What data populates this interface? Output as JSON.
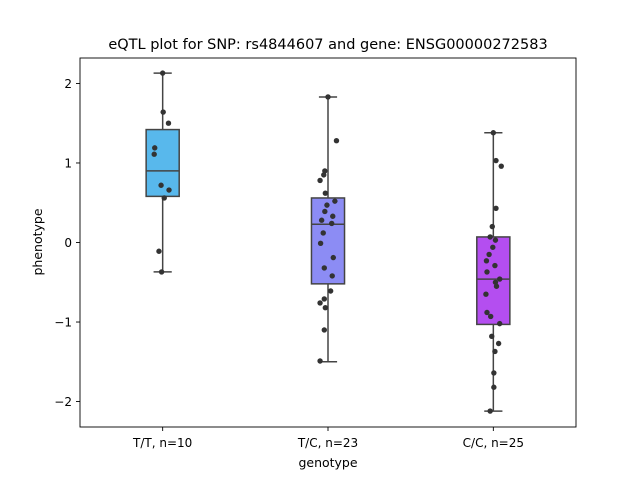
{
  "chart_data": {
    "type": "box",
    "title": "eQTL plot for SNP: rs4844607 and gene: ENSG00000272583",
    "xlabel": "genotype",
    "ylabel": "phenotype",
    "ylim": [
      -2.32,
      2.32
    ],
    "yticks": [
      -2,
      -1,
      0,
      1,
      2
    ],
    "ytick_labels": [
      "−2",
      "−1",
      "0",
      "1",
      "2"
    ],
    "grid": false,
    "categories": [
      "T/T, n=10",
      "T/C, n=23",
      "C/C, n=25"
    ],
    "colors": [
      "#58b8ec",
      "#8c8cf4",
      "#b44ef0"
    ],
    "boxes": [
      {
        "category": "T/T, n=10",
        "whisker_low": -0.37,
        "q1": 0.58,
        "median": 0.9,
        "q3": 1.42,
        "whisker_high": 2.13
      },
      {
        "category": "T/C, n=23",
        "whisker_low": -1.5,
        "q1": -0.52,
        "median": 0.23,
        "q3": 0.56,
        "whisker_high": 1.83
      },
      {
        "category": "C/C, n=25",
        "whisker_low": -2.12,
        "q1": -1.03,
        "median": -0.46,
        "q3": 0.07,
        "whisker_high": 1.38
      }
    ],
    "points": [
      [
        [
          0.0,
          2.13
        ],
        [
          0.01,
          1.64
        ],
        [
          0.11,
          1.5
        ],
        [
          -0.15,
          1.19
        ],
        [
          -0.16,
          1.11
        ],
        [
          -0.03,
          0.72
        ],
        [
          0.12,
          0.66
        ],
        [
          0.03,
          0.56
        ],
        [
          -0.07,
          -0.11
        ],
        [
          -0.02,
          -0.37
        ]
      ],
      [
        [
          0.0,
          1.83
        ],
        [
          0.16,
          1.28
        ],
        [
          -0.06,
          0.9
        ],
        [
          -0.08,
          0.85
        ],
        [
          -0.15,
          0.78
        ],
        [
          -0.05,
          0.62
        ],
        [
          0.13,
          0.52
        ],
        [
          -0.02,
          0.47
        ],
        [
          -0.06,
          0.39
        ],
        [
          0.09,
          0.33
        ],
        [
          -0.12,
          0.28
        ],
        [
          0.07,
          0.24
        ],
        [
          -0.09,
          0.12
        ],
        [
          -0.14,
          -0.01
        ],
        [
          0.1,
          -0.19
        ],
        [
          -0.07,
          -0.32
        ],
        [
          0.08,
          -0.42
        ],
        [
          0.05,
          -0.61
        ],
        [
          -0.07,
          -0.71
        ],
        [
          -0.15,
          -0.76
        ],
        [
          -0.05,
          -0.82
        ],
        [
          -0.07,
          -1.1
        ],
        [
          -0.15,
          -1.49
        ]
      ],
      [
        [
          0.0,
          1.38
        ],
        [
          0.05,
          1.03
        ],
        [
          0.15,
          0.96
        ],
        [
          0.05,
          0.43
        ],
        [
          -0.02,
          0.2
        ],
        [
          0.04,
          0.03
        ],
        [
          -0.06,
          0.07
        ],
        [
          -0.01,
          -0.06
        ],
        [
          -0.08,
          -0.15
        ],
        [
          -0.13,
          -0.23
        ],
        [
          0.03,
          -0.29
        ],
        [
          -0.12,
          -0.37
        ],
        [
          0.12,
          -0.46
        ],
        [
          0.04,
          -0.5
        ],
        [
          0.06,
          -0.55
        ],
        [
          -0.14,
          -0.65
        ],
        [
          -0.12,
          -0.88
        ],
        [
          -0.05,
          -0.93
        ],
        [
          0.12,
          -1.02
        ],
        [
          -0.03,
          -1.18
        ],
        [
          0.1,
          -1.27
        ],
        [
          0.03,
          -1.37
        ],
        [
          0.01,
          -1.64
        ],
        [
          0.01,
          -1.82
        ],
        [
          -0.06,
          -2.12
        ]
      ]
    ]
  }
}
